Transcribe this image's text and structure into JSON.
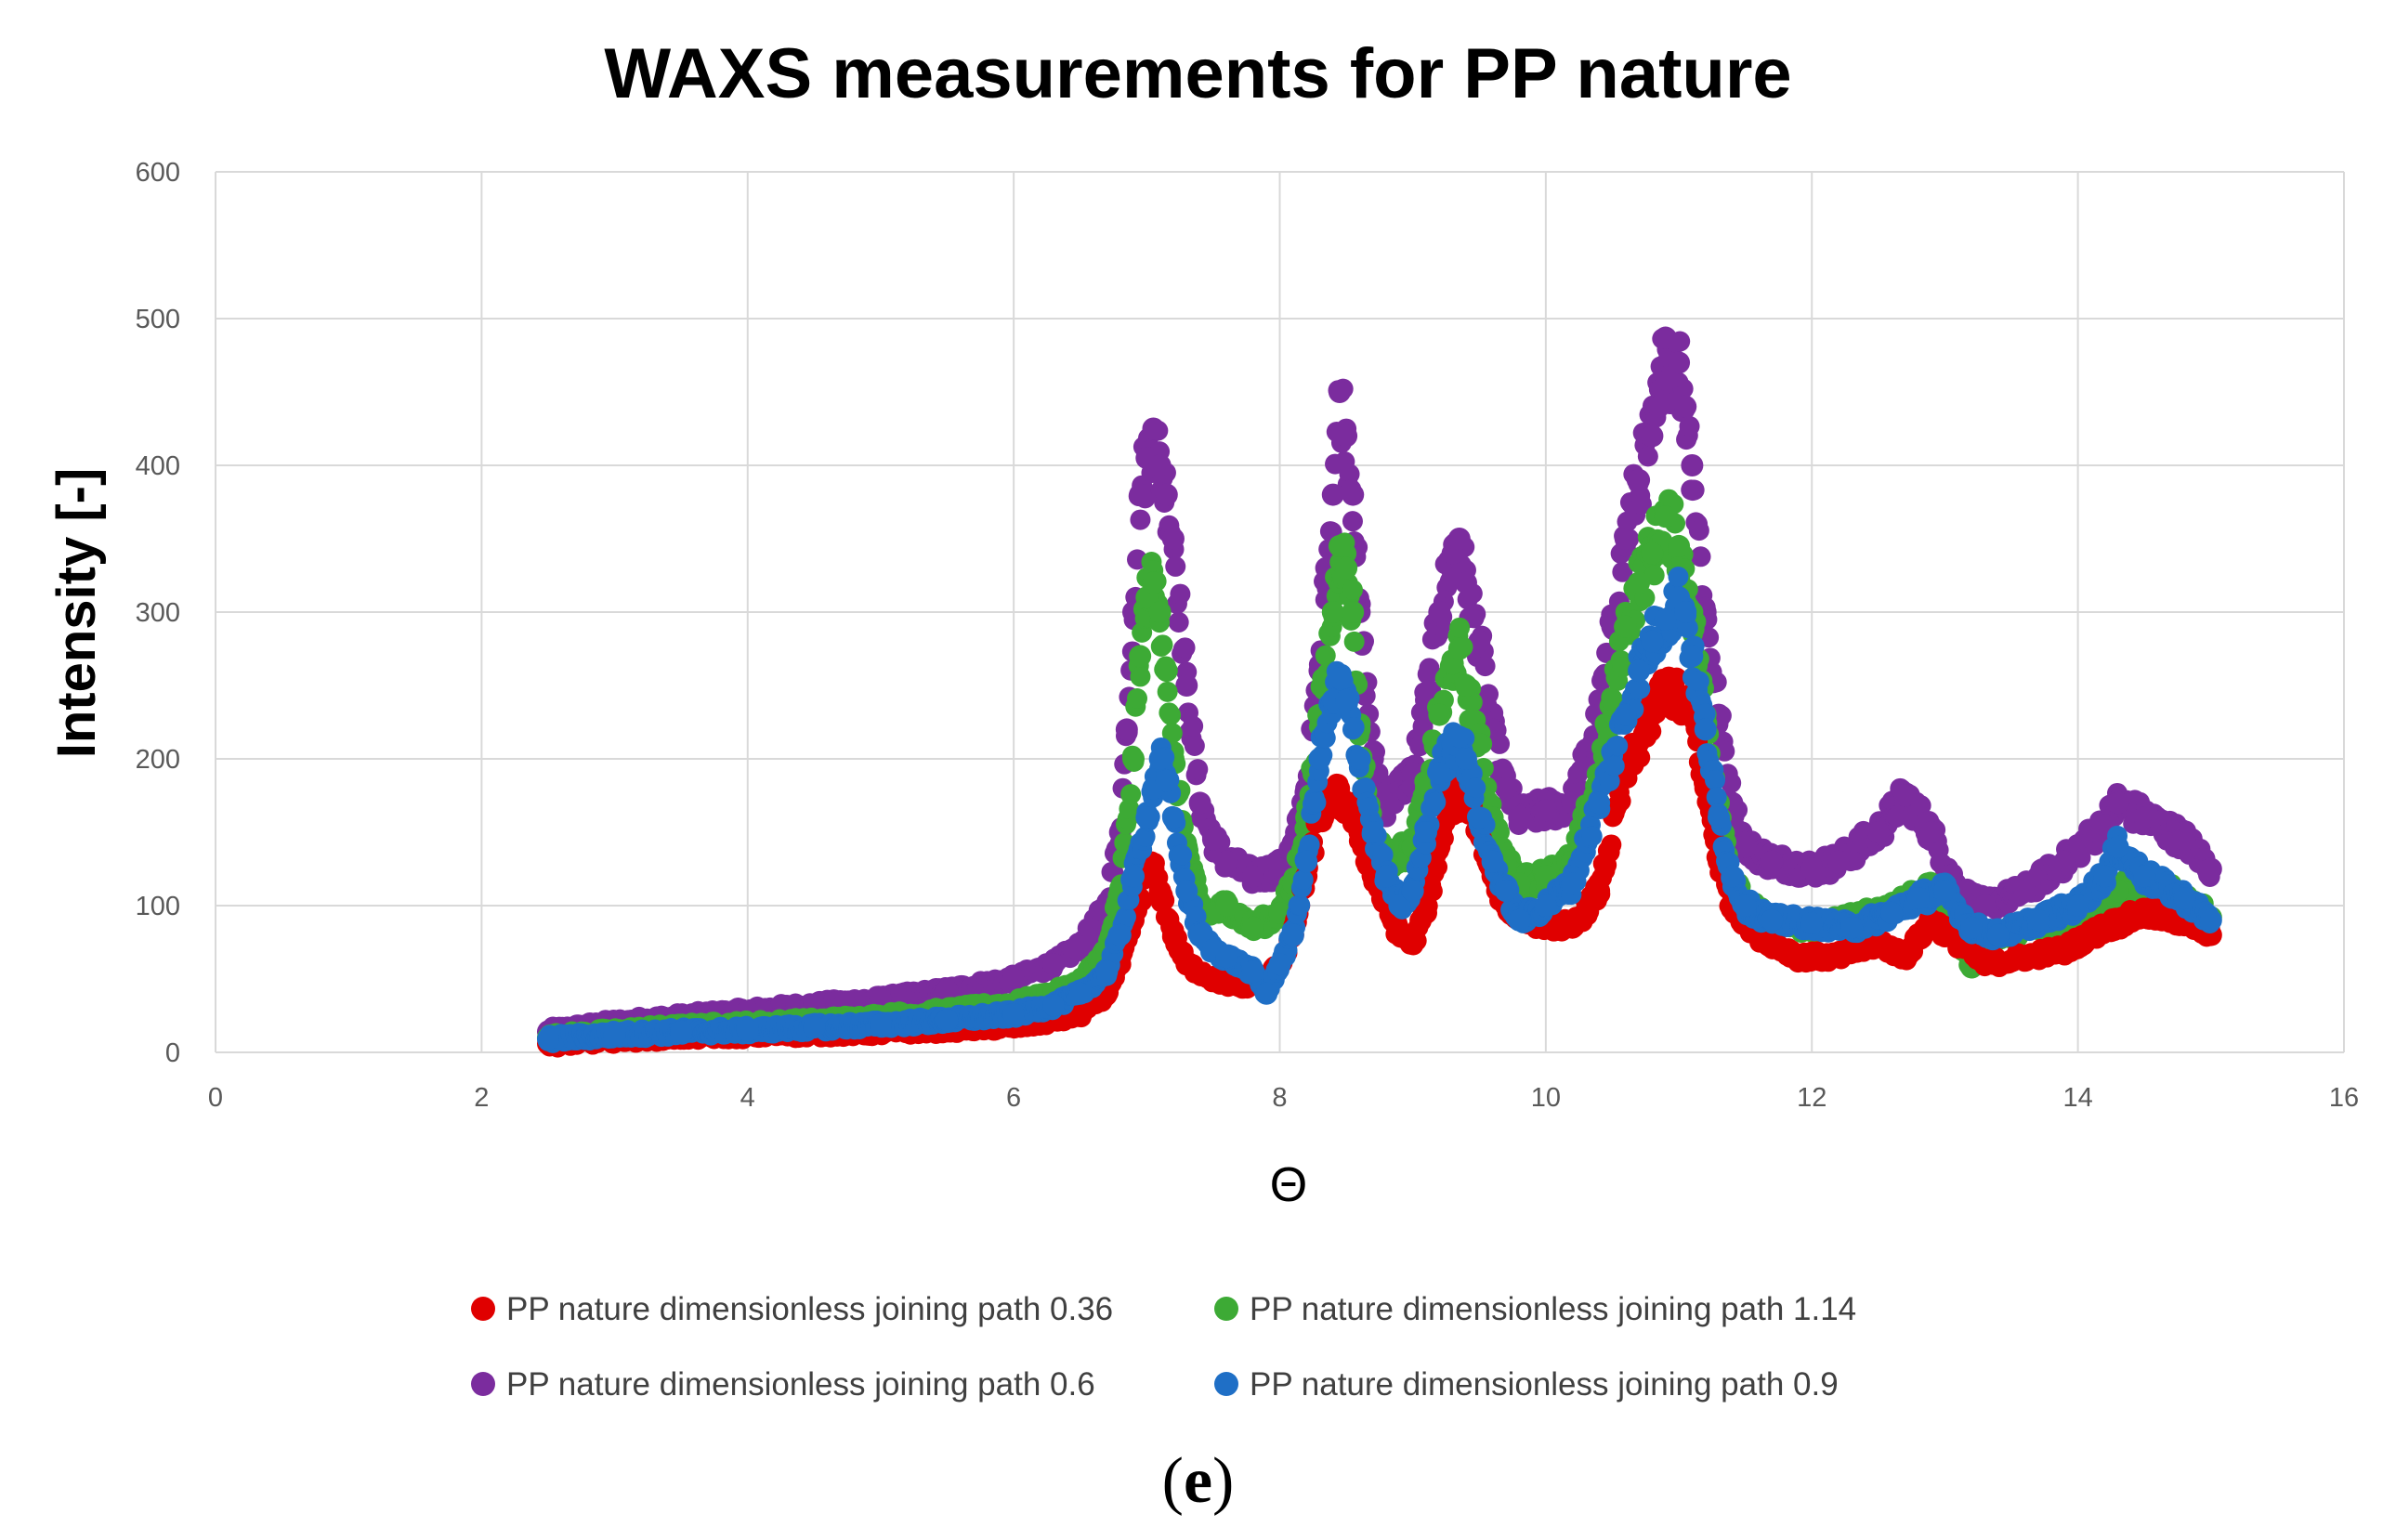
{
  "chart_data": {
    "type": "scatter",
    "title": "WAXS measurements for PP nature",
    "xlabel": "Θ",
    "ylabel": "Intensity [-]",
    "xlim": [
      0,
      16
    ],
    "ylim": [
      0,
      600
    ],
    "xticks": [
      0,
      2,
      4,
      6,
      8,
      10,
      12,
      14,
      16
    ],
    "yticks": [
      0,
      100,
      200,
      300,
      400,
      500,
      600
    ],
    "grid": true,
    "legend_position": "bottom",
    "caption": "(e)",
    "series": [
      {
        "name": "PP nature dimensionless joining path 0.6",
        "color": "#7B2C9E",
        "points": [
          [
            2.5,
            14
          ],
          [
            3,
            20
          ],
          [
            3.5,
            24
          ],
          [
            4,
            28
          ],
          [
            4.5,
            32
          ],
          [
            5,
            36
          ],
          [
            5.5,
            42
          ],
          [
            6,
            50
          ],
          [
            6.3,
            60
          ],
          [
            6.5,
            72
          ],
          [
            6.7,
            100
          ],
          [
            6.8,
            150
          ],
          [
            6.85,
            220
          ],
          [
            6.9,
            300
          ],
          [
            6.95,
            380
          ],
          [
            7.0,
            405
          ],
          [
            7.05,
            425
          ],
          [
            7.1,
            400
          ],
          [
            7.15,
            380
          ],
          [
            7.2,
            350
          ],
          [
            7.3,
            250
          ],
          [
            7.4,
            170
          ],
          [
            7.5,
            145
          ],
          [
            7.6,
            130
          ],
          [
            7.8,
            120
          ],
          [
            8.0,
            125
          ],
          [
            8.1,
            140
          ],
          [
            8.2,
            180
          ],
          [
            8.3,
            260
          ],
          [
            8.35,
            330
          ],
          [
            8.4,
            380
          ],
          [
            8.45,
            450
          ],
          [
            8.5,
            420
          ],
          [
            8.55,
            380
          ],
          [
            8.6,
            300
          ],
          [
            8.7,
            200
          ],
          [
            8.8,
            170
          ],
          [
            9.0,
            190
          ],
          [
            9.1,
            240
          ],
          [
            9.2,
            300
          ],
          [
            9.3,
            340
          ],
          [
            9.35,
            350
          ],
          [
            9.4,
            320
          ],
          [
            9.5,
            280
          ],
          [
            9.6,
            220
          ],
          [
            9.7,
            180
          ],
          [
            9.8,
            160
          ],
          [
            10.0,
            165
          ],
          [
            10.2,
            170
          ],
          [
            10.4,
            230
          ],
          [
            10.5,
            290
          ],
          [
            10.6,
            350
          ],
          [
            10.7,
            390
          ],
          [
            10.8,
            420
          ],
          [
            10.85,
            440
          ],
          [
            10.9,
            487
          ],
          [
            10.95,
            460
          ],
          [
            11.0,
            470
          ],
          [
            11.05,
            440
          ],
          [
            11.1,
            400
          ],
          [
            11.2,
            300
          ],
          [
            11.3,
            230
          ],
          [
            11.4,
            170
          ],
          [
            11.5,
            140
          ],
          [
            11.7,
            130
          ],
          [
            12.0,
            125
          ],
          [
            12.2,
            130
          ],
          [
            12.5,
            150
          ],
          [
            12.7,
            175
          ],
          [
            12.9,
            150
          ],
          [
            13.1,
            110
          ],
          [
            13.3,
            100
          ],
          [
            13.6,
            110
          ],
          [
            13.9,
            130
          ],
          [
            14.2,
            155
          ],
          [
            14.3,
            170
          ],
          [
            14.5,
            160
          ],
          [
            14.8,
            145
          ],
          [
            15.0,
            125
          ]
        ]
      },
      {
        "name": "PP nature dimensionless joining path 1.14",
        "color": "#3DAA35",
        "points": [
          [
            2.5,
            10
          ],
          [
            3,
            14
          ],
          [
            3.5,
            17
          ],
          [
            4,
            19
          ],
          [
            4.5,
            21
          ],
          [
            5,
            24
          ],
          [
            5.5,
            28
          ],
          [
            6,
            33
          ],
          [
            6.3,
            40
          ],
          [
            6.5,
            48
          ],
          [
            6.7,
            70
          ],
          [
            6.8,
            110
          ],
          [
            6.9,
            200
          ],
          [
            6.95,
            270
          ],
          [
            7.0,
            310
          ],
          [
            7.05,
            320
          ],
          [
            7.1,
            300
          ],
          [
            7.15,
            260
          ],
          [
            7.2,
            200
          ],
          [
            7.3,
            140
          ],
          [
            7.4,
            100
          ],
          [
            7.5,
            95
          ],
          [
            7.6,
            100
          ],
          [
            7.8,
            85
          ],
          [
            8.0,
            95
          ],
          [
            8.1,
            115
          ],
          [
            8.2,
            160
          ],
          [
            8.3,
            230
          ],
          [
            8.4,
            300
          ],
          [
            8.45,
            345
          ],
          [
            8.5,
            330
          ],
          [
            8.55,
            300
          ],
          [
            8.6,
            220
          ],
          [
            8.7,
            150
          ],
          [
            8.8,
            130
          ],
          [
            9.0,
            140
          ],
          [
            9.1,
            180
          ],
          [
            9.2,
            230
          ],
          [
            9.3,
            265
          ],
          [
            9.35,
            275
          ],
          [
            9.4,
            250
          ],
          [
            9.5,
            210
          ],
          [
            9.6,
            160
          ],
          [
            9.7,
            130
          ],
          [
            9.8,
            115
          ],
          [
            10.0,
            120
          ],
          [
            10.2,
            130
          ],
          [
            10.4,
            190
          ],
          [
            10.5,
            240
          ],
          [
            10.6,
            290
          ],
          [
            10.7,
            320
          ],
          [
            10.8,
            340
          ],
          [
            10.9,
            365
          ],
          [
            11.0,
            345
          ],
          [
            11.1,
            300
          ],
          [
            11.2,
            230
          ],
          [
            11.3,
            170
          ],
          [
            11.4,
            120
          ],
          [
            11.5,
            100
          ],
          [
            11.7,
            90
          ],
          [
            12.0,
            85
          ],
          [
            12.5,
            95
          ],
          [
            12.7,
            105
          ],
          [
            12.9,
            110
          ],
          [
            13.1,
            80
          ],
          [
            13.2,
            58
          ],
          [
            13.4,
            80
          ],
          [
            13.7,
            85
          ],
          [
            14.0,
            95
          ],
          [
            14.3,
            110
          ],
          [
            14.5,
            115
          ],
          [
            14.8,
            105
          ],
          [
            15.0,
            92
          ]
        ]
      },
      {
        "name": "PP nature dimensionless joining path 0.36",
        "color": "#E00000",
        "points": [
          [
            2.5,
            6
          ],
          [
            3,
            9
          ],
          [
            3.5,
            11
          ],
          [
            4,
            12
          ],
          [
            4.5,
            13
          ],
          [
            5,
            14
          ],
          [
            5.5,
            16
          ],
          [
            6,
            18
          ],
          [
            6.3,
            22
          ],
          [
            6.5,
            26
          ],
          [
            6.7,
            40
          ],
          [
            6.8,
            60
          ],
          [
            6.9,
            90
          ],
          [
            7.0,
            120
          ],
          [
            7.05,
            125
          ],
          [
            7.1,
            110
          ],
          [
            7.2,
            80
          ],
          [
            7.3,
            60
          ],
          [
            7.5,
            50
          ],
          [
            7.7,
            45
          ],
          [
            7.9,
            50
          ],
          [
            8.0,
            60
          ],
          [
            8.1,
            80
          ],
          [
            8.2,
            120
          ],
          [
            8.3,
            160
          ],
          [
            8.4,
            175
          ],
          [
            8.5,
            170
          ],
          [
            8.6,
            150
          ],
          [
            8.7,
            120
          ],
          [
            8.9,
            80
          ],
          [
            9.0,
            75
          ],
          [
            9.1,
            95
          ],
          [
            9.2,
            140
          ],
          [
            9.3,
            170
          ],
          [
            9.4,
            175
          ],
          [
            9.5,
            150
          ],
          [
            9.6,
            120
          ],
          [
            9.7,
            100
          ],
          [
            9.9,
            90
          ],
          [
            10.2,
            85
          ],
          [
            10.4,
            110
          ],
          [
            10.6,
            190
          ],
          [
            10.8,
            230
          ],
          [
            10.9,
            250
          ],
          [
            11.0,
            240
          ],
          [
            11.1,
            230
          ],
          [
            11.2,
            180
          ],
          [
            11.3,
            130
          ],
          [
            11.4,
            100
          ],
          [
            11.6,
            80
          ],
          [
            11.9,
            65
          ],
          [
            12.2,
            65
          ],
          [
            12.5,
            75
          ],
          [
            12.7,
            65
          ],
          [
            12.9,
            90
          ],
          [
            13.1,
            75
          ],
          [
            13.3,
            60
          ],
          [
            13.6,
            65
          ],
          [
            13.9,
            70
          ],
          [
            14.2,
            85
          ],
          [
            14.5,
            95
          ],
          [
            14.8,
            90
          ],
          [
            15.0,
            80
          ]
        ]
      },
      {
        "name": "PP nature dimensionless joining path 0.9",
        "color": "#1F6FC6",
        "points": [
          [
            2.5,
            9
          ],
          [
            3,
            12
          ],
          [
            3.5,
            14
          ],
          [
            4,
            15
          ],
          [
            4.5,
            17
          ],
          [
            5,
            19
          ],
          [
            5.5,
            22
          ],
          [
            6,
            26
          ],
          [
            6.3,
            32
          ],
          [
            6.5,
            40
          ],
          [
            6.7,
            55
          ],
          [
            6.8,
            80
          ],
          [
            6.9,
            120
          ],
          [
            7.0,
            160
          ],
          [
            7.05,
            180
          ],
          [
            7.1,
            200
          ],
          [
            7.15,
            185
          ],
          [
            7.2,
            160
          ],
          [
            7.3,
            110
          ],
          [
            7.4,
            80
          ],
          [
            7.5,
            70
          ],
          [
            7.6,
            65
          ],
          [
            7.8,
            55
          ],
          [
            7.9,
            40
          ],
          [
            8.0,
            60
          ],
          [
            8.1,
            80
          ],
          [
            8.2,
            130
          ],
          [
            8.3,
            200
          ],
          [
            8.4,
            240
          ],
          [
            8.45,
            255
          ],
          [
            8.5,
            240
          ],
          [
            8.6,
            200
          ],
          [
            8.7,
            150
          ],
          [
            8.8,
            120
          ],
          [
            8.9,
            100
          ],
          [
            9.0,
            110
          ],
          [
            9.1,
            150
          ],
          [
            9.2,
            190
          ],
          [
            9.3,
            210
          ],
          [
            9.35,
            215
          ],
          [
            9.4,
            200
          ],
          [
            9.5,
            160
          ],
          [
            9.6,
            130
          ],
          [
            9.7,
            110
          ],
          [
            9.8,
            90
          ],
          [
            10.0,
            100
          ],
          [
            10.2,
            115
          ],
          [
            10.4,
            170
          ],
          [
            10.6,
            230
          ],
          [
            10.7,
            260
          ],
          [
            10.8,
            280
          ],
          [
            10.9,
            295
          ],
          [
            11.0,
            310
          ],
          [
            11.05,
            300
          ],
          [
            11.1,
            270
          ],
          [
            11.2,
            220
          ],
          [
            11.3,
            160
          ],
          [
            11.4,
            120
          ],
          [
            11.5,
            100
          ],
          [
            11.7,
            90
          ],
          [
            12.0,
            88
          ],
          [
            12.3,
            85
          ],
          [
            12.6,
            95
          ],
          [
            12.8,
            105
          ],
          [
            13.0,
            110
          ],
          [
            13.2,
            85
          ],
          [
            13.4,
            80
          ],
          [
            13.7,
            90
          ],
          [
            14.0,
            100
          ],
          [
            14.2,
            120
          ],
          [
            14.3,
            140
          ],
          [
            14.5,
            120
          ],
          [
            14.8,
            105
          ],
          [
            15.0,
            90
          ]
        ]
      }
    ],
    "legend": [
      "PP nature dimensionless joining path 0.36",
      "PP nature dimensionless joining path 1.14",
      "PP nature dimensionless joining path 0.6",
      "PP nature dimensionless joining path 0.9"
    ],
    "legend_colors": [
      "#E00000",
      "#3DAA35",
      "#7B2C9E",
      "#1F6FC6"
    ]
  }
}
